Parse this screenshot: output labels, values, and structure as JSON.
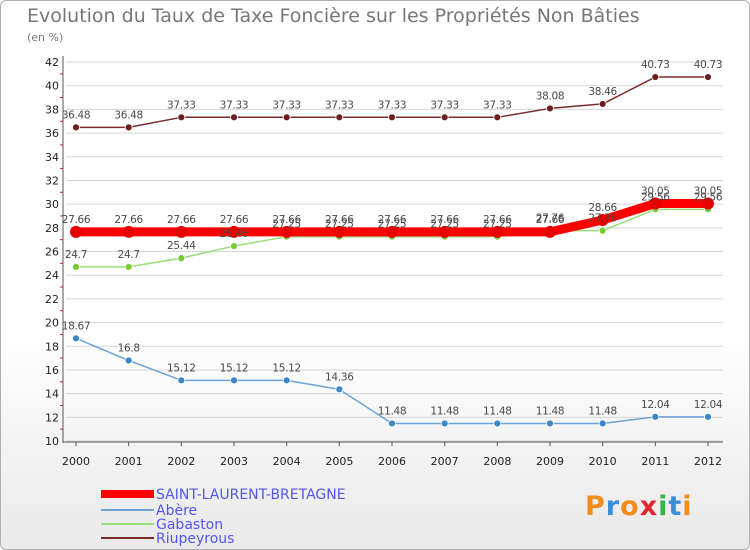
{
  "header": {
    "title": "Evolution du Taux de Taxe Foncière sur les Propriétés Non Bâties",
    "unit": "(en %)"
  },
  "logo": {
    "text": "Proxiti",
    "colors": [
      "#f28c1e",
      "#3b8fd9",
      "#f28c1e",
      "#e0262e",
      "#3bb34a",
      "#3b8fd9",
      "#f28c1e"
    ]
  },
  "chart_data": {
    "type": "line",
    "title": "Evolution du Taux de Taxe Foncière sur les Propriétés Non Bâties",
    "ylabel": "(en %)",
    "xlabel": "",
    "x": [
      2000,
      2001,
      2002,
      2003,
      2004,
      2005,
      2006,
      2007,
      2008,
      2009,
      2010,
      2011,
      2012
    ],
    "ylim": [
      10,
      42
    ],
    "yticks": [
      10,
      12,
      14,
      16,
      18,
      20,
      22,
      24,
      26,
      28,
      30,
      32,
      34,
      36,
      38,
      40,
      42
    ],
    "grid": "horizontal",
    "legend": "bottom-left",
    "series": [
      {
        "name": "SAINT-LAURENT-BRETAGNE",
        "color": "#ff0000",
        "marker": "#e60000",
        "values": [
          27.66,
          27.66,
          27.66,
          27.66,
          27.66,
          27.66,
          27.66,
          27.66,
          27.66,
          27.66,
          28.66,
          30.05,
          30.05
        ],
        "labels": [
          "27.66",
          "27.66",
          "27.66",
          "27.66",
          "27.66",
          "27.66",
          "27.66",
          "27.66",
          "27.66",
          "27.66",
          "28.66",
          "30.05",
          "30.05"
        ]
      },
      {
        "name": "Abère",
        "color": "#6ba3d6",
        "marker": "#3a86c8",
        "values": [
          18.67,
          16.8,
          15.12,
          15.12,
          15.12,
          14.36,
          11.48,
          11.48,
          11.48,
          11.48,
          11.48,
          12.04,
          12.04
        ],
        "labels": [
          "18.67",
          "16.8",
          "15.12",
          "15.12",
          "15.12",
          "14.36",
          "11.48",
          "11.48",
          "11.48",
          "11.48",
          "11.48",
          "12.04",
          "12.04"
        ]
      },
      {
        "name": "Gabaston",
        "color": "#99dd77",
        "marker": "#77cc33",
        "values": [
          24.7,
          24.7,
          25.44,
          26.46,
          27.25,
          27.25,
          27.25,
          27.25,
          27.25,
          27.76,
          27.76,
          29.56,
          29.56
        ],
        "labels": [
          "24.7",
          "24.7",
          "25.44",
          "26.46",
          "27.25",
          "27.25",
          "27.25",
          "27.25",
          "27.25",
          "27.76",
          "27.76",
          "29.56",
          "29.56"
        ]
      },
      {
        "name": "Riupeyrous",
        "color": "#7a2b2b",
        "marker": "#6b1f1f",
        "values": [
          36.48,
          36.48,
          37.33,
          37.33,
          37.33,
          37.33,
          37.33,
          37.33,
          37.33,
          38.08,
          38.46,
          40.73,
          40.73
        ],
        "labels": [
          "36.48",
          "36.48",
          "37.33",
          "37.33",
          "37.33",
          "37.33",
          "37.33",
          "37.33",
          "37.33",
          "38.08",
          "38.46",
          "40.73",
          "40.73"
        ]
      }
    ]
  }
}
